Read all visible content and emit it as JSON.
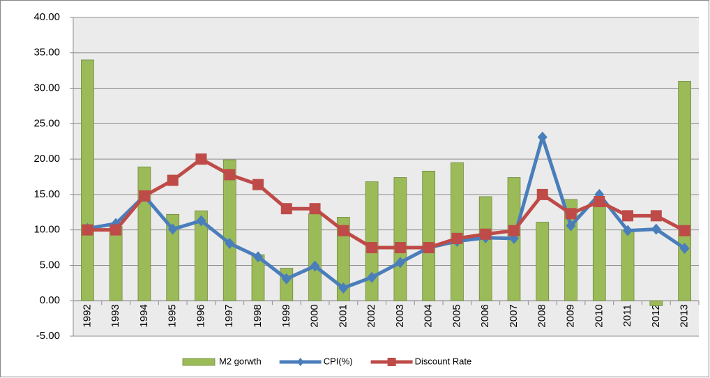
{
  "chart_data": {
    "type": "combo",
    "categories": [
      "1992",
      "1993",
      "1994",
      "1995",
      "1996",
      "1997",
      "1998",
      "1999",
      "2000",
      "2001",
      "2002",
      "2003",
      "2004",
      "2005",
      "2006",
      "2007",
      "2008",
      "2009",
      "2010",
      "2011",
      "2012",
      "2013"
    ],
    "series": [
      {
        "name": "M2 gorwth",
        "type": "bar",
        "color": "#9bbb59",
        "values": [
          34.0,
          10.5,
          18.9,
          12.2,
          12.7,
          19.9,
          6.5,
          4.6,
          12.3,
          11.8,
          16.8,
          17.4,
          18.3,
          19.5,
          14.7,
          17.4,
          11.1,
          14.3,
          13.7,
          10.0,
          -0.7,
          31.0
        ]
      },
      {
        "name": "CPI(%)",
        "type": "line",
        "marker": "diamond",
        "color": "#4a7ebb",
        "values": [
          10.2,
          10.9,
          14.8,
          10.1,
          11.3,
          8.1,
          6.2,
          3.1,
          4.9,
          1.8,
          3.3,
          5.4,
          7.5,
          8.4,
          8.9,
          8.8,
          23.1,
          10.6,
          15.0,
          9.9,
          10.1,
          7.4
        ]
      },
      {
        "name": "Discount Rate",
        "type": "line",
        "marker": "square",
        "color": "#be4b48",
        "values": [
          10,
          10,
          14.8,
          17,
          20,
          17.8,
          16.4,
          13,
          13,
          9.9,
          7.5,
          7.5,
          7.5,
          8.8,
          9.4,
          9.9,
          15,
          12.3,
          14,
          12,
          12,
          9.9
        ]
      }
    ],
    "ylim": [
      -5,
      40
    ],
    "yticks": [
      {
        "value": -5,
        "label": "-5.00"
      },
      {
        "value": 0,
        "label": "0.00"
      },
      {
        "value": 5,
        "label": "5.00"
      },
      {
        "value": 10,
        "label": "10.00"
      },
      {
        "value": 15,
        "label": "15.00"
      },
      {
        "value": 20,
        "label": "20.00"
      },
      {
        "value": 25,
        "label": "25.00"
      },
      {
        "value": 30,
        "label": "30.00"
      },
      {
        "value": 35,
        "label": "35.00"
      },
      {
        "value": 40,
        "label": "40.00"
      }
    ],
    "grid": true,
    "legend": "bottom"
  }
}
